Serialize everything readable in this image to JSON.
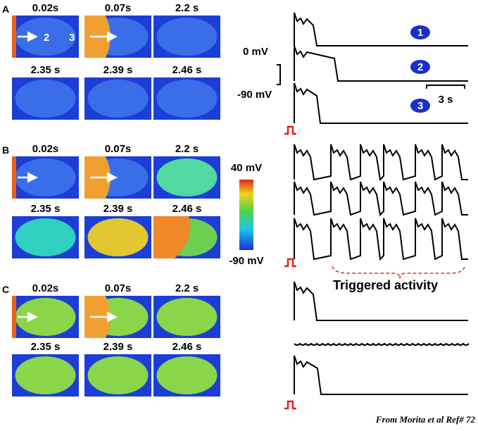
{
  "panels": [
    {
      "label": "A",
      "times": [
        "0.02s",
        "0.07s",
        "2.2 s",
        "2.35 s",
        "2.39 s",
        "2.46 s"
      ],
      "arrow_labels": [
        "2",
        "3"
      ]
    },
    {
      "label": "B",
      "times": [
        "0.02s",
        "0.07s",
        "2.2 s",
        "2.35 s",
        "2.39 s",
        "2.46 s"
      ]
    },
    {
      "label": "C",
      "times": [
        "0.02s",
        "0.07s",
        "2.2 s",
        "2.35 s",
        "2.39 s",
        "2.46 s"
      ]
    }
  ],
  "colorbar": {
    "top": "40 mV",
    "bottom": "-90 mV"
  },
  "traces": {
    "labels": [
      "1",
      "2",
      "3"
    ],
    "scale_top": "0 mV",
    "scale_bottom": "-90 mV",
    "scale_time": "3 s",
    "annotation": "Triggered activity"
  },
  "footer": "From Morita et al Ref# 72"
}
